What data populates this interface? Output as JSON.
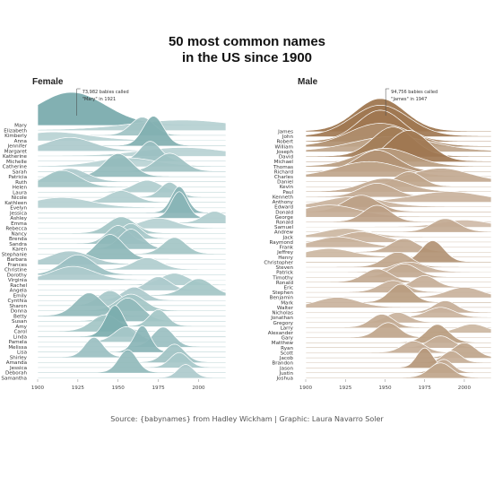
{
  "title_line1": "50 most common names",
  "title_line2": "in the US since 1900",
  "caption": "Source: {babynames} from Hadley Wickham | Graphic: Laura Navarro Soler",
  "chart_data": [
    {
      "type": "area",
      "panel": "Female",
      "title": "Female",
      "color": "#5f9a9c",
      "x_ticks": [
        1900,
        1925,
        1950,
        1975,
        2000
      ],
      "xlim": [
        1900,
        2017
      ],
      "annotation": {
        "line1": "73,982 babies called",
        "line2": "\"Mary\" in 1921",
        "year": 1921
      },
      "series": [
        {
          "name": "Mary",
          "peak": 1921,
          "width": 30,
          "height": 1.0
        },
        {
          "name": "Elizabeth",
          "peak": 1990,
          "width": 45,
          "height": 0.3
        },
        {
          "name": "Kimberly",
          "peak": 1965,
          "width": 10,
          "height": 0.55
        },
        {
          "name": "Anna",
          "peak": 1910,
          "width": 30,
          "height": 0.25
        },
        {
          "name": "Jennifer",
          "peak": 1972,
          "width": 9,
          "height": 0.9
        },
        {
          "name": "Margaret",
          "peak": 1920,
          "width": 20,
          "height": 0.4
        },
        {
          "name": "Katherine",
          "peak": 1990,
          "width": 35,
          "height": 0.25
        },
        {
          "name": "Michelle",
          "peak": 1970,
          "width": 9,
          "height": 0.6
        },
        {
          "name": "Catherine",
          "peak": 1955,
          "width": 25,
          "height": 0.25
        },
        {
          "name": "Sarah",
          "peak": 1982,
          "width": 12,
          "height": 0.55
        },
        {
          "name": "Patricia",
          "peak": 1950,
          "width": 12,
          "height": 0.7
        },
        {
          "name": "Ruth",
          "peak": 1920,
          "width": 15,
          "height": 0.4
        },
        {
          "name": "Helen",
          "peak": 1915,
          "width": 15,
          "height": 0.5
        },
        {
          "name": "Laura",
          "peak": 1968,
          "width": 12,
          "height": 0.35
        },
        {
          "name": "Nicole",
          "peak": 1982,
          "width": 8,
          "height": 0.45
        },
        {
          "name": "Kathleen",
          "peak": 1952,
          "width": 12,
          "height": 0.35
        },
        {
          "name": "Evelyn",
          "peak": 1915,
          "width": 25,
          "height": 0.3
        },
        {
          "name": "Jessica",
          "peak": 1988,
          "width": 7,
          "height": 0.8
        },
        {
          "name": "Ashley",
          "peak": 1988,
          "width": 7,
          "height": 0.8
        },
        {
          "name": "Emma",
          "peak": 2010,
          "width": 10,
          "height": 0.35
        },
        {
          "name": "Rebecca",
          "peak": 1975,
          "width": 15,
          "height": 0.3
        },
        {
          "name": "Nancy",
          "peak": 1952,
          "width": 12,
          "height": 0.5
        },
        {
          "name": "Brenda",
          "peak": 1958,
          "width": 9,
          "height": 0.45
        },
        {
          "name": "Sandra",
          "peak": 1950,
          "width": 10,
          "height": 0.55
        },
        {
          "name": "Karen",
          "peak": 1958,
          "width": 10,
          "height": 0.6
        },
        {
          "name": "Stephanie",
          "peak": 1985,
          "width": 10,
          "height": 0.5
        },
        {
          "name": "Barbara",
          "peak": 1945,
          "width": 12,
          "height": 0.75
        },
        {
          "name": "Frances",
          "peak": 1920,
          "width": 18,
          "height": 0.4
        },
        {
          "name": "Christine",
          "peak": 1968,
          "width": 12,
          "height": 0.35
        },
        {
          "name": "Dorothy",
          "peak": 1925,
          "width": 14,
          "height": 0.6
        },
        {
          "name": "Virginia",
          "peak": 1922,
          "width": 18,
          "height": 0.4
        },
        {
          "name": "Rachel",
          "peak": 1985,
          "width": 12,
          "height": 0.35
        },
        {
          "name": "Angela",
          "peak": 1975,
          "width": 10,
          "height": 0.4
        },
        {
          "name": "Emily",
          "peak": 2000,
          "width": 12,
          "height": 0.5
        },
        {
          "name": "Cynthia",
          "peak": 1960,
          "width": 10,
          "height": 0.4
        },
        {
          "name": "Sharon",
          "peak": 1945,
          "width": 10,
          "height": 0.45
        },
        {
          "name": "Donna",
          "peak": 1958,
          "width": 12,
          "height": 0.5
        },
        {
          "name": "Betty",
          "peak": 1932,
          "width": 12,
          "height": 0.7
        },
        {
          "name": "Susan",
          "peak": 1956,
          "width": 12,
          "height": 0.7
        },
        {
          "name": "Amy",
          "peak": 1975,
          "width": 8,
          "height": 0.5
        },
        {
          "name": "Carol",
          "peak": 1942,
          "width": 12,
          "height": 0.5
        },
        {
          "name": "Linda",
          "peak": 1948,
          "width": 8,
          "height": 0.95
        },
        {
          "name": "Pamela",
          "peak": 1955,
          "width": 10,
          "height": 0.45
        },
        {
          "name": "Melissa",
          "peak": 1978,
          "width": 9,
          "height": 0.6
        },
        {
          "name": "Lisa",
          "peak": 1965,
          "width": 7,
          "height": 0.8
        },
        {
          "name": "Shirley",
          "peak": 1935,
          "width": 8,
          "height": 0.6
        },
        {
          "name": "Amanda",
          "peak": 1985,
          "width": 9,
          "height": 0.55
        },
        {
          "name": "Jessica",
          "peak": 1988,
          "width": 8,
          "height": 0.45
        },
        {
          "name": "Deborah",
          "peak": 1956,
          "width": 8,
          "height": 0.7
        },
        {
          "name": "Samantha",
          "peak": 1992,
          "width": 7,
          "height": 0.4
        }
      ]
    },
    {
      "type": "area",
      "panel": "Male",
      "title": "Male",
      "color": "#8a5a2b",
      "x_ticks": [
        1900,
        1925,
        1950,
        1975,
        2000
      ],
      "xlim": [
        1900,
        2017
      ],
      "annotation": {
        "line1": "94,756 babies called",
        "line2": "\"James\" in 1947",
        "year": 1947
      },
      "series": [
        {
          "name": "James",
          "peak": 1947,
          "width": 22,
          "height": 1.0
        },
        {
          "name": "John",
          "peak": 1947,
          "width": 25,
          "height": 0.95
        },
        {
          "name": "Robert",
          "peak": 1947,
          "width": 20,
          "height": 0.95
        },
        {
          "name": "William",
          "peak": 1947,
          "width": 28,
          "height": 0.7
        },
        {
          "name": "Joseph",
          "peak": 1955,
          "width": 35,
          "height": 0.45
        },
        {
          "name": "David",
          "peak": 1955,
          "width": 18,
          "height": 0.9
        },
        {
          "name": "Michael",
          "peak": 1965,
          "width": 18,
          "height": 0.95
        },
        {
          "name": "Thomas",
          "peak": 1950,
          "width": 25,
          "height": 0.55
        },
        {
          "name": "Richard",
          "peak": 1945,
          "width": 18,
          "height": 0.65
        },
        {
          "name": "Charles",
          "peak": 1940,
          "width": 28,
          "height": 0.45
        },
        {
          "name": "Daniel",
          "peak": 1985,
          "width": 25,
          "height": 0.4
        },
        {
          "name": "Kevin",
          "peak": 1965,
          "width": 12,
          "height": 0.45
        },
        {
          "name": "Paul",
          "peak": 1950,
          "width": 20,
          "height": 0.4
        },
        {
          "name": "Kenneth",
          "peak": 1945,
          "width": 15,
          "height": 0.4
        },
        {
          "name": "Anthony",
          "peak": 1990,
          "width": 30,
          "height": 0.3
        },
        {
          "name": "Edward",
          "peak": 1930,
          "width": 25,
          "height": 0.3
        },
        {
          "name": "Donald",
          "peak": 1935,
          "width": 15,
          "height": 0.5
        },
        {
          "name": "George",
          "peak": 1915,
          "width": 25,
          "height": 0.35
        },
        {
          "name": "Ronald",
          "peak": 1945,
          "width": 12,
          "height": 0.5
        },
        {
          "name": "Samuel",
          "peak": 2000,
          "width": 20,
          "height": 0.2
        },
        {
          "name": "Andrew",
          "peak": 1988,
          "width": 12,
          "height": 0.4
        },
        {
          "name": "Jack",
          "peak": 1925,
          "width": 20,
          "height": 0.25
        },
        {
          "name": "Raymond",
          "peak": 1935,
          "width": 18,
          "height": 0.3
        },
        {
          "name": "Frank",
          "peak": 1920,
          "width": 20,
          "height": 0.3
        },
        {
          "name": "Jeffrey",
          "peak": 1962,
          "width": 12,
          "height": 0.4
        },
        {
          "name": "Henry",
          "peak": 1915,
          "width": 20,
          "height": 0.25
        },
        {
          "name": "Christopher",
          "peak": 1980,
          "width": 10,
          "height": 0.65
        },
        {
          "name": "Steven",
          "peak": 1958,
          "width": 12,
          "height": 0.45
        },
        {
          "name": "Patrick",
          "peak": 1965,
          "width": 15,
          "height": 0.3
        },
        {
          "name": "Timothy",
          "peak": 1962,
          "width": 12,
          "height": 0.4
        },
        {
          "name": "Ronald",
          "peak": 1945,
          "width": 12,
          "height": 0.4
        },
        {
          "name": "Eric",
          "peak": 1975,
          "width": 10,
          "height": 0.35
        },
        {
          "name": "Stephen",
          "peak": 1955,
          "width": 12,
          "height": 0.35
        },
        {
          "name": "Benjamin",
          "peak": 2000,
          "width": 15,
          "height": 0.3
        },
        {
          "name": "Mark",
          "peak": 1960,
          "width": 10,
          "height": 0.55
        },
        {
          "name": "Walter",
          "peak": 1920,
          "width": 18,
          "height": 0.3
        },
        {
          "name": "Nicholas",
          "peak": 1988,
          "width": 10,
          "height": 0.35
        },
        {
          "name": "Jonathan",
          "peak": 1985,
          "width": 12,
          "height": 0.3
        },
        {
          "name": "Gregory",
          "peak": 1958,
          "width": 10,
          "height": 0.3
        },
        {
          "name": "Larry",
          "peak": 1948,
          "width": 10,
          "height": 0.4
        },
        {
          "name": "Alexander",
          "peak": 2005,
          "width": 12,
          "height": 0.25
        },
        {
          "name": "Gary",
          "peak": 1952,
          "width": 10,
          "height": 0.45
        },
        {
          "name": "Matthew",
          "peak": 1983,
          "width": 10,
          "height": 0.55
        },
        {
          "name": "Ryan",
          "peak": 1985,
          "width": 10,
          "height": 0.35
        },
        {
          "name": "Scott",
          "peak": 1968,
          "width": 10,
          "height": 0.35
        },
        {
          "name": "Jacob",
          "peak": 2000,
          "width": 10,
          "height": 0.45
        },
        {
          "name": "Brandon",
          "peak": 1992,
          "width": 8,
          "height": 0.35
        },
        {
          "name": "Jason",
          "peak": 1975,
          "width": 7,
          "height": 0.6
        },
        {
          "name": "Justin",
          "peak": 1987,
          "width": 8,
          "height": 0.4
        },
        {
          "name": "Joshua",
          "peak": 1985,
          "width": 10,
          "height": 0.45
        }
      ]
    }
  ]
}
